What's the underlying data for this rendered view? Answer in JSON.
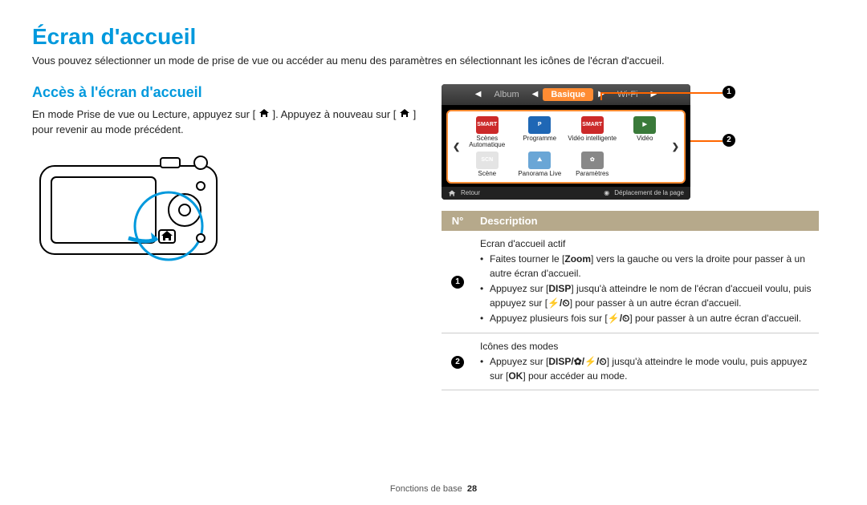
{
  "page": {
    "title": "Écran d'accueil",
    "intro": "Vous pouvez sélectionner un mode de prise de vue ou accéder au menu des paramètres en sélectionnant les icônes de l'écran d'accueil.",
    "footer_section": "Fonctions de base",
    "footer_page": "28"
  },
  "section": {
    "title": "Accès à l'écran d'accueil",
    "body_prefix": "En mode Prise de vue ou Lecture, appuyez sur [",
    "body_mid": "]. Appuyez à nouveau sur [",
    "body_suffix": "] pour revenir au mode précédent."
  },
  "colors": {
    "accent_blue": "#0099dd",
    "callout_orange": "#ff6600",
    "ui_orange": "#ff8c33",
    "table_header": "#b6a98b"
  },
  "screen": {
    "tabs": [
      "Album",
      "Basique",
      "Wi-Fi"
    ],
    "active_tab_index": 1,
    "modes": [
      {
        "label": "Scènes Automatique",
        "icon_bg": "#cc2a2a",
        "icon_text": "SMART"
      },
      {
        "label": "Programme",
        "icon_bg": "#1f67b5",
        "icon_text": "P"
      },
      {
        "label": "Vidéo intelligente",
        "icon_bg": "#cc2a2a",
        "icon_text": "SMART"
      },
      {
        "label": "Vidéo",
        "icon_bg": "#3a7a3a",
        "icon_text": "▶"
      },
      {
        "label": "Scène",
        "icon_bg": "#e4e4e4",
        "icon_text": "SCN"
      },
      {
        "label": "Panorama Live",
        "icon_bg": "#6aa6d6",
        "icon_text": "⛰"
      },
      {
        "label": "Paramètres",
        "icon_bg": "#888",
        "icon_text": "✿"
      }
    ],
    "bottom_left": "Retour",
    "bottom_right": "Déplacement de la page"
  },
  "callouts": {
    "n1": "1",
    "n2": "2"
  },
  "table": {
    "header_n": "N°",
    "header_desc": "Description",
    "row1": {
      "n": "1",
      "title": "Ecran d'accueil actif",
      "b1_pre": "Faites tourner le [",
      "b1_bold": "Zoom",
      "b1_post": "] vers la gauche ou vers la droite pour passer à un autre écran d'accueil.",
      "b2_pre": "Appuyez sur [",
      "b2_icon": "DISP",
      "b2_mid": "] jusqu'à atteindre le nom de l'écran d'accueil voulu, puis appuyez sur [",
      "b2_icons2": "⚡/⏲",
      "b2_post": "] pour passer à un autre écran d'accueil.",
      "b3_pre": "Appuyez plusieurs fois sur [",
      "b3_icons": "⚡/⏲",
      "b3_post": "] pour passer à un autre écran d'accueil."
    },
    "row2": {
      "n": "2",
      "title": "Icônes des modes",
      "b1_pre": "Appuyez sur [",
      "b1_icons": "DISP/✿/⚡/⏲",
      "b1_mid": "] jusqu'à atteindre le mode voulu, puis appuyez sur [",
      "b1_icon2": "OK",
      "b1_post": "] pour accéder au mode."
    }
  }
}
